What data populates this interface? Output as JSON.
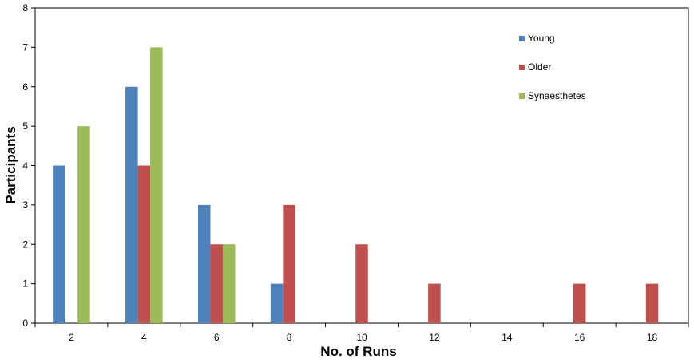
{
  "chart_data": {
    "type": "bar",
    "xlabel": "No. of Runs",
    "ylabel": "Participants",
    "categories": [
      "2",
      "4",
      "6",
      "8",
      "10",
      "12",
      "14",
      "16",
      "18"
    ],
    "ylim": [
      0,
      8
    ],
    "yticks": [
      "0",
      "1",
      "2",
      "3",
      "4",
      "5",
      "6",
      "7",
      "8"
    ],
    "series": [
      {
        "name": "Young",
        "color": "#4F81BD",
        "values": [
          4,
          6,
          3,
          1,
          0,
          0,
          0,
          0,
          0
        ]
      },
      {
        "name": "Older",
        "color": "#C0504D",
        "values": [
          0,
          4,
          2,
          3,
          2,
          1,
          0,
          1,
          1
        ]
      },
      {
        "name": "Synaesthetes",
        "color": "#9BBB59",
        "values": [
          5,
          7,
          2,
          0,
          0,
          0,
          0,
          0,
          0
        ]
      }
    ],
    "grid": false,
    "legend_position": "top-right"
  }
}
